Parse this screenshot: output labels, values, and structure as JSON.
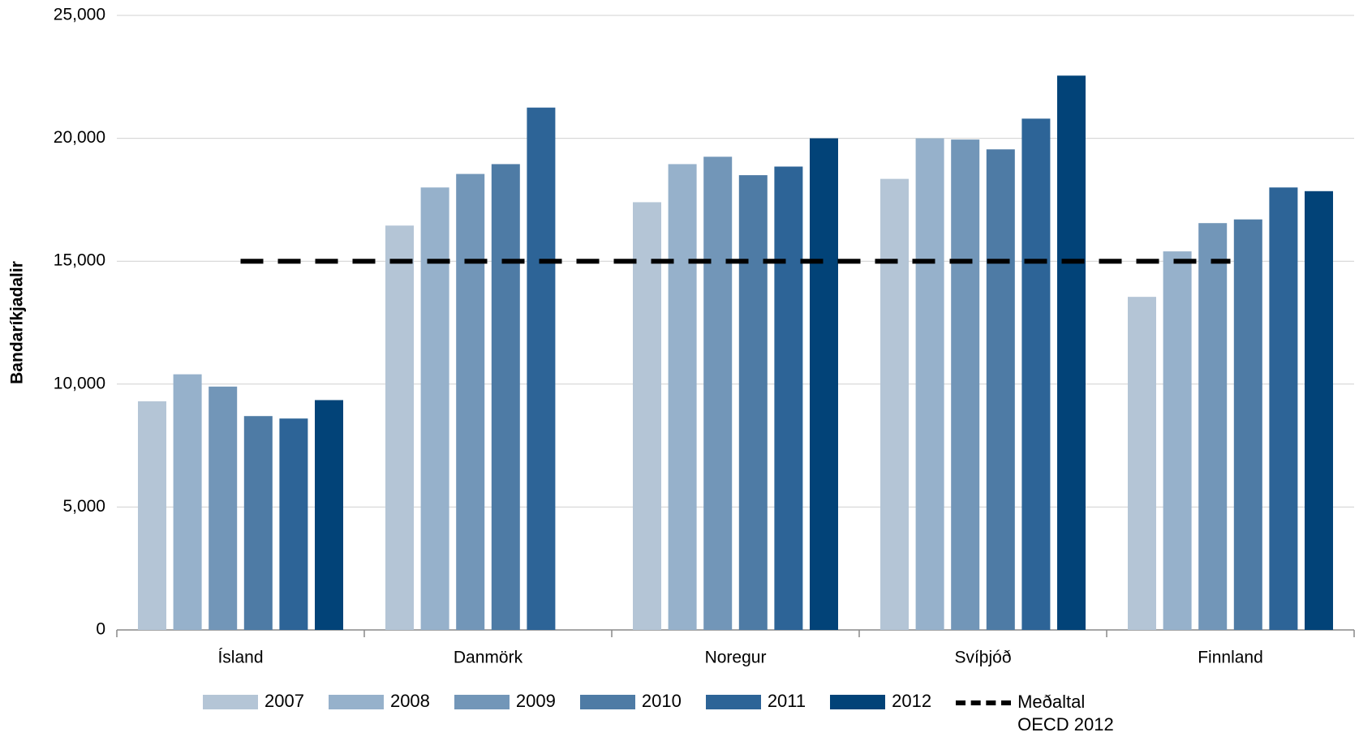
{
  "chart_data": {
    "type": "bar",
    "y_label": "Bandaríkjadalir",
    "categories": [
      "Ísland",
      "Danmörk",
      "Noregur",
      "Svíþjóð",
      "Finnland"
    ],
    "series": [
      {
        "name": "2007",
        "color": "#b4c5d6",
        "values": [
          9300,
          16450,
          17400,
          18350,
          13550
        ]
      },
      {
        "name": "2008",
        "color": "#96b1cb",
        "values": [
          10400,
          18000,
          18950,
          20000,
          15400
        ]
      },
      {
        "name": "2009",
        "color": "#7296b8",
        "values": [
          9900,
          18550,
          19250,
          19950,
          16550
        ]
      },
      {
        "name": "2010",
        "color": "#4e7ba5",
        "values": [
          8700,
          18950,
          18500,
          19550,
          16700
        ]
      },
      {
        "name": "2011",
        "color": "#2d6497",
        "values": [
          8600,
          21250,
          18850,
          20800,
          18000
        ]
      },
      {
        "name": "2012",
        "color": "#024378",
        "values": [
          9350,
          null,
          20000,
          22550,
          17850
        ]
      }
    ],
    "reference_line": {
      "name": "Meðaltal OECD 2012",
      "value": 15000,
      "color": "#000000"
    },
    "ylim": [
      0,
      25000
    ],
    "yticks": [
      0,
      {
        "value": 5000,
        "label": "5,000"
      },
      {
        "value": 10000,
        "label": "10,000"
      },
      {
        "value": 15000,
        "label": "15,000"
      },
      {
        "value": 20000,
        "label": "20,000"
      },
      {
        "value": 25000,
        "label": "25,000"
      }
    ],
    "grid": true,
    "legend": "bottom"
  }
}
